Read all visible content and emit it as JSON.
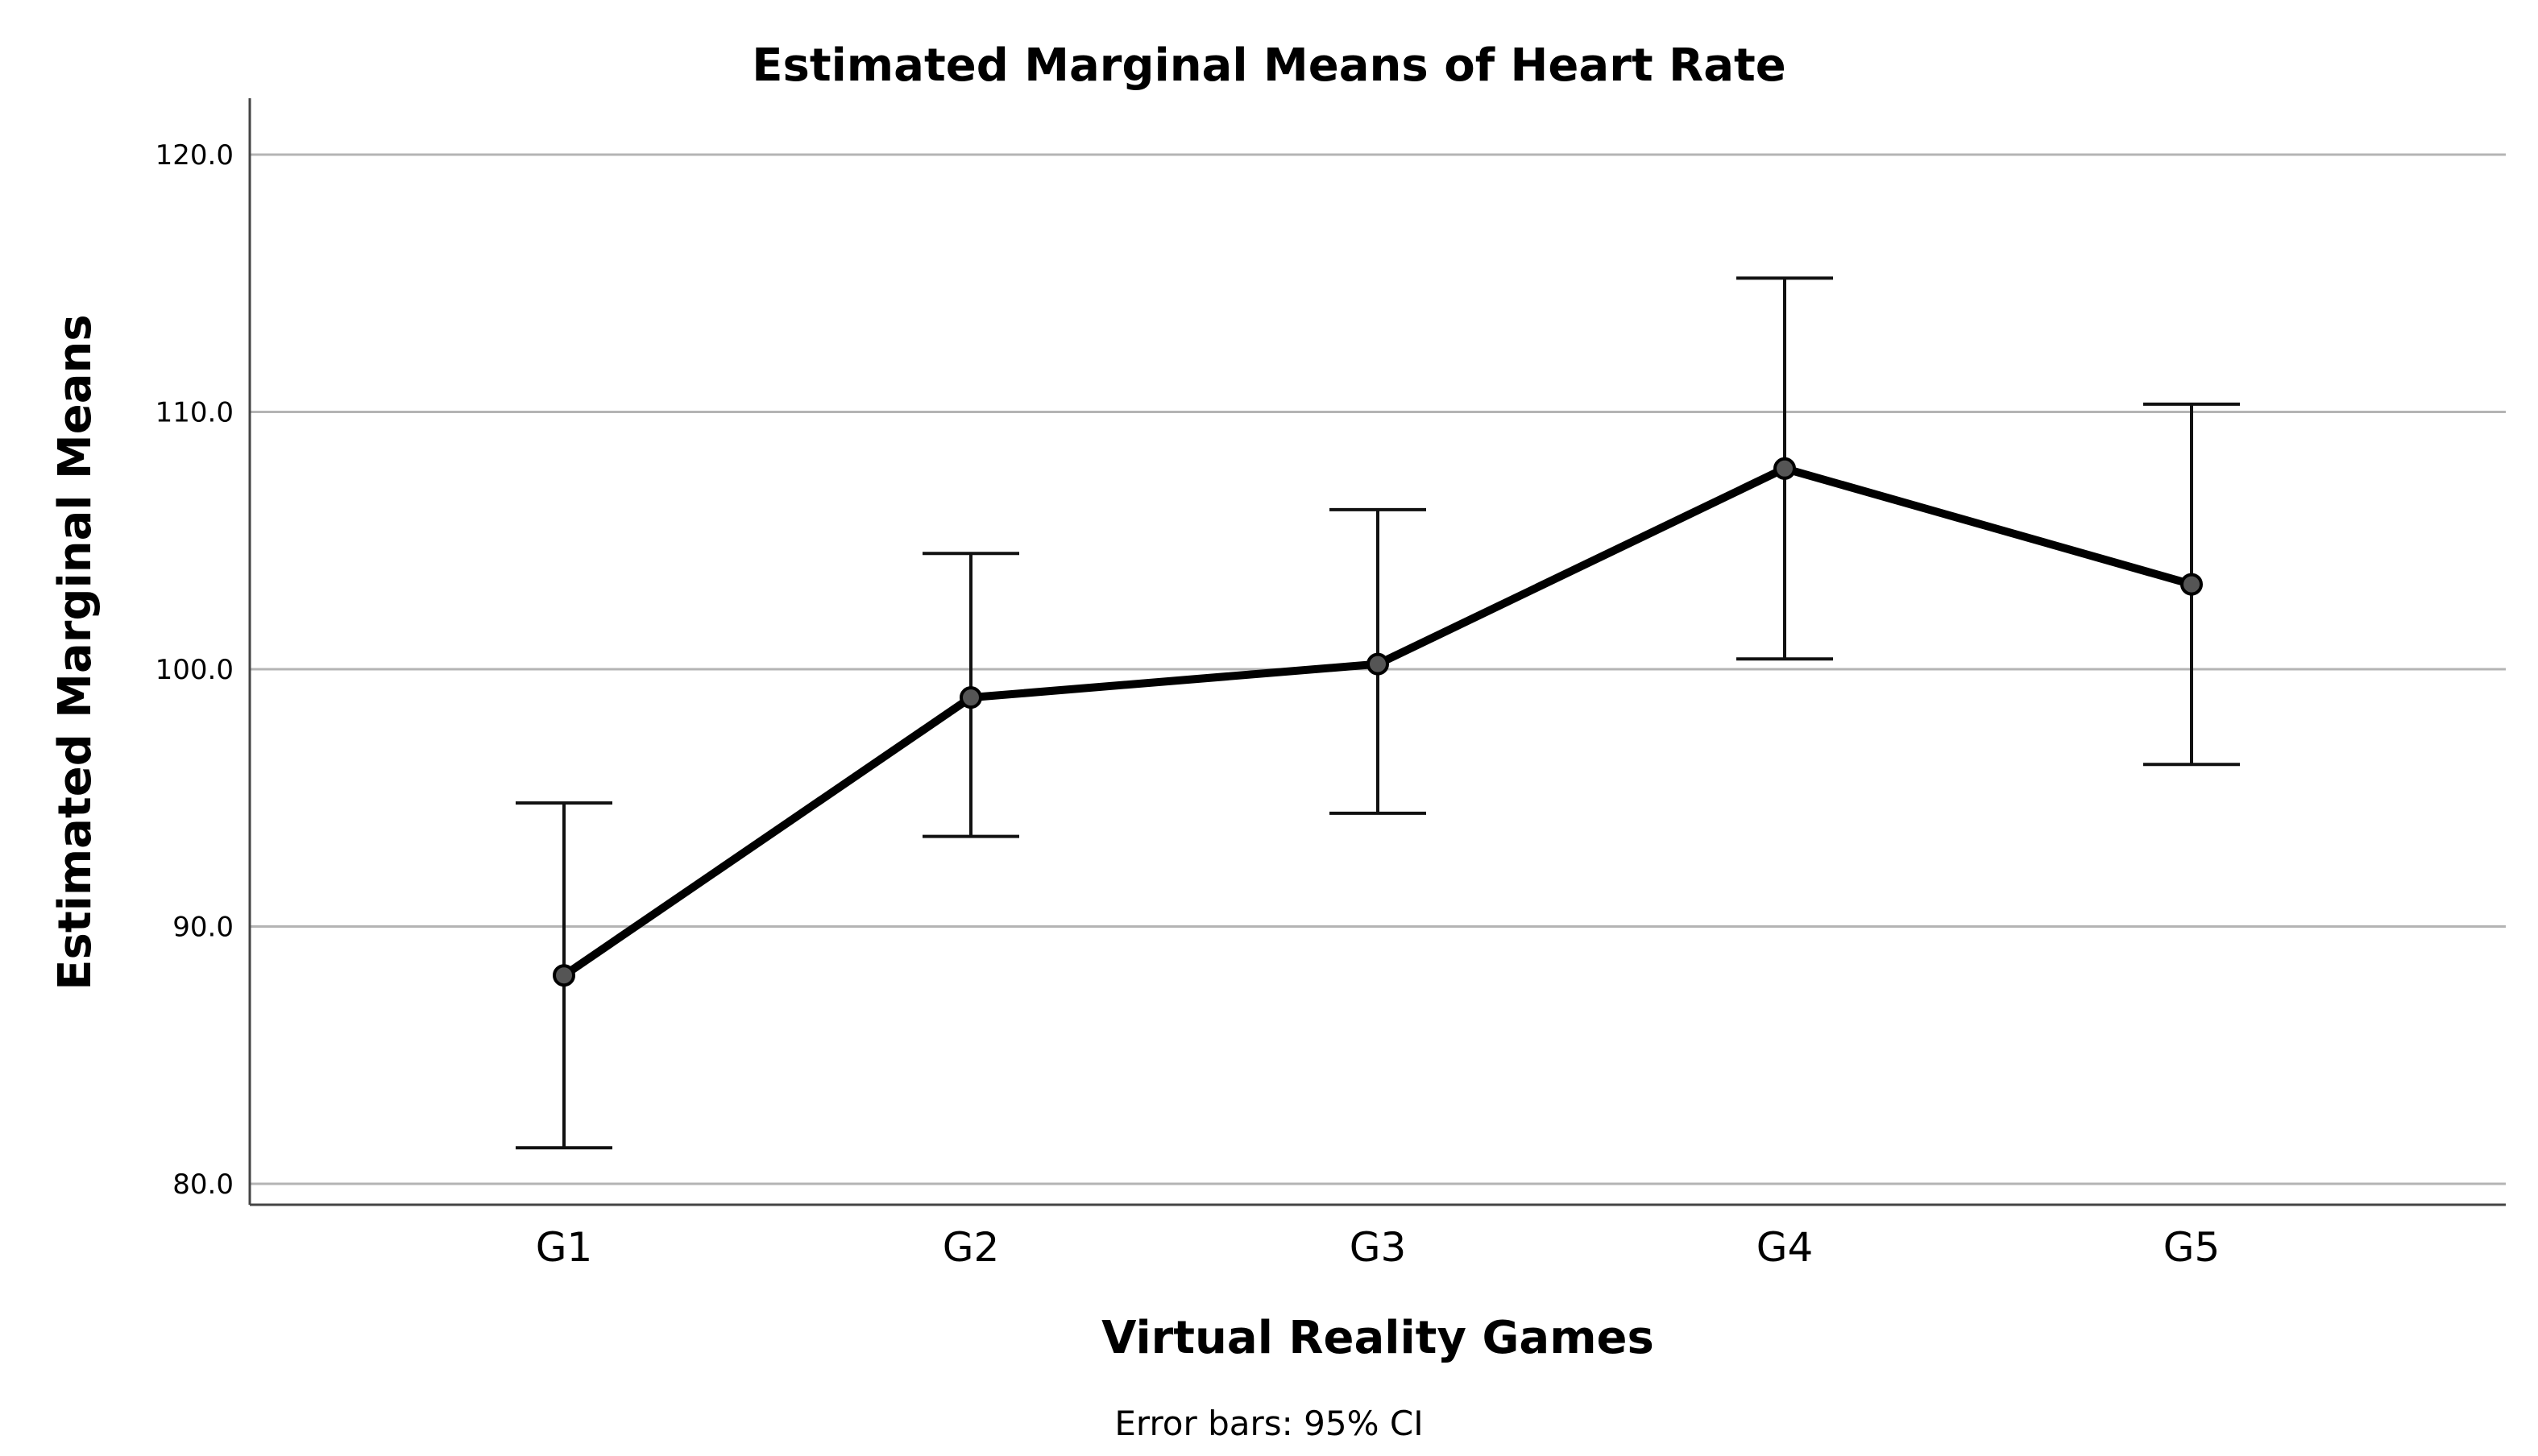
{
  "chart_data": {
    "type": "line",
    "title": "Estimated Marginal Means of Heart Rate",
    "xlabel": "Virtual Reality Games",
    "ylabel": "Estimated Marginal Means",
    "note": "Error bars: 95% CI",
    "categories": [
      "G1",
      "G2",
      "G3",
      "G4",
      "G5"
    ],
    "series": [
      {
        "name": "Heart Rate",
        "values": [
          88.1,
          98.9,
          100.2,
          107.8,
          103.3
        ],
        "ci_lower": [
          81.4,
          93.5,
          94.4,
          100.4,
          96.3
        ],
        "ci_upper": [
          94.8,
          104.5,
          106.2,
          115.2,
          110.3
        ]
      }
    ],
    "ylim": [
      80,
      120
    ],
    "yticks": [
      80,
      90,
      100,
      110,
      120
    ],
    "ytick_labels": [
      "80.0",
      "90.0",
      "100.0",
      "110.0",
      "120.0"
    ],
    "grid": true,
    "colors": {
      "line": "#000000",
      "point_fill": "#555555",
      "grid": "#b4b4b4",
      "axis": "#444444"
    }
  }
}
